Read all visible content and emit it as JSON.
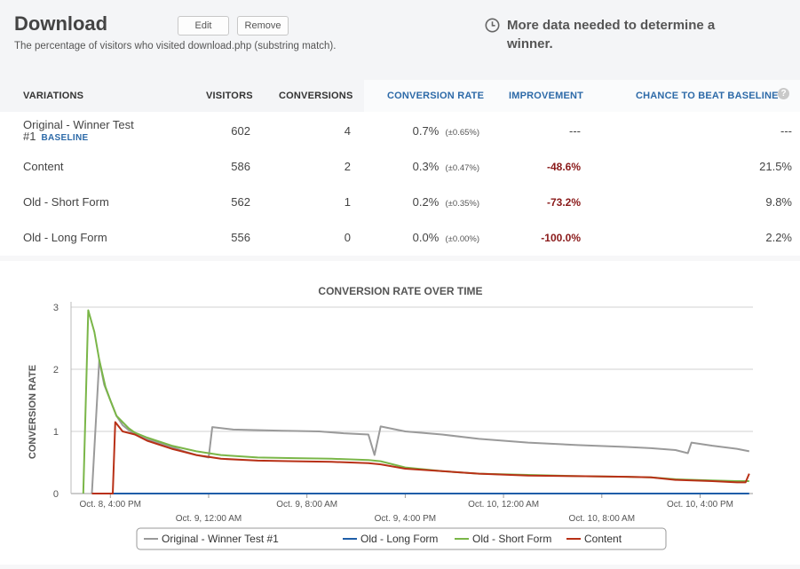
{
  "header": {
    "title": "Download",
    "edit_label": "Edit",
    "remove_label": "Remove",
    "description": "The percentage of visitors who visited download.php (substring match).",
    "notice": "More data needed to determine a winner."
  },
  "table": {
    "headers": {
      "variations": "VARIATIONS",
      "visitors": "VISITORS",
      "conversions": "CONVERSIONS",
      "conversion_rate": "CONVERSION RATE",
      "improvement": "IMPROVEMENT",
      "chance": "CHANCE TO BEAT BASELINE",
      "help": "?"
    },
    "rows": [
      {
        "name": "Original - Winner Test #1",
        "badge": "BASELINE",
        "visitors": "602",
        "conversions": "4",
        "rate": "0.7%",
        "ci": "(±0.65%)",
        "improvement": "---",
        "chance": "---"
      },
      {
        "name": "Content",
        "badge": "",
        "visitors": "586",
        "conversions": "2",
        "rate": "0.3%",
        "ci": "(±0.47%)",
        "improvement": "-48.6%",
        "chance": "21.5%"
      },
      {
        "name": "Old - Short Form",
        "badge": "",
        "visitors": "562",
        "conversions": "1",
        "rate": "0.2%",
        "ci": "(±0.35%)",
        "improvement": "-73.2%",
        "chance": "9.8%"
      },
      {
        "name": "Old - Long Form",
        "badge": "",
        "visitors": "556",
        "conversions": "0",
        "rate": "0.0%",
        "ci": "(±0.00%)",
        "improvement": "-100.0%",
        "chance": "2.2%"
      }
    ]
  },
  "chart_data": {
    "type": "line",
    "title": "CONVERSION RATE OVER TIME",
    "xlabel": "",
    "ylabel": "CONVERSION RATE",
    "ylim": [
      0,
      3
    ],
    "yticks": [
      "0",
      "1",
      "2",
      "3"
    ],
    "xticks_row1": [
      "Oct. 8, 4:00 PM",
      "Oct. 9, 8:00 AM",
      "Oct. 10, 12:00 AM",
      "Oct. 10, 4:00 PM"
    ],
    "xticks_row2": [
      "Oct. 9, 12:00 AM",
      "Oct. 9, 4:00 PM",
      "Oct. 10, 8:00 AM"
    ],
    "x_hours_range": [
      -3.2,
      52.3
    ],
    "tick_hours": [
      0,
      8,
      16,
      24,
      32,
      40,
      48
    ],
    "grid": true,
    "legend_position": "bottom",
    "series": [
      {
        "name": "Original - Winner Test #1",
        "color": "#9a9a9a",
        "points": [
          [
            -1.5,
            0
          ],
          [
            -0.9,
            2.15
          ],
          [
            -0.5,
            1.75
          ],
          [
            0,
            1.5
          ],
          [
            0.5,
            1.25
          ],
          [
            1,
            1.1
          ],
          [
            1.5,
            1.02
          ],
          [
            2,
            0.95
          ],
          [
            3,
            0.87
          ],
          [
            5,
            0.75
          ],
          [
            6,
            0.68
          ],
          [
            7,
            0.62
          ],
          [
            8,
            0.58
          ],
          [
            8.3,
            1.07
          ],
          [
            10,
            1.03
          ],
          [
            14,
            1.01
          ],
          [
            17,
            1.0
          ],
          [
            19,
            0.97
          ],
          [
            21,
            0.95
          ],
          [
            21.5,
            0.62
          ],
          [
            22,
            1.08
          ],
          [
            24,
            1.0
          ],
          [
            27,
            0.95
          ],
          [
            30,
            0.88
          ],
          [
            34,
            0.82
          ],
          [
            38,
            0.78
          ],
          [
            42,
            0.75
          ],
          [
            44,
            0.73
          ],
          [
            46,
            0.7
          ],
          [
            47,
            0.65
          ],
          [
            47.3,
            0.82
          ],
          [
            49,
            0.77
          ],
          [
            51,
            0.72
          ],
          [
            52,
            0.68
          ]
        ]
      },
      {
        "name": "Old - Long Form",
        "color": "#1f5ea8",
        "points": [
          [
            -1.5,
            0
          ],
          [
            52,
            0
          ]
        ]
      },
      {
        "name": "Old - Short Form",
        "color": "#7ab648",
        "points": [
          [
            -2.2,
            0
          ],
          [
            -1.8,
            2.95
          ],
          [
            -1.3,
            2.6
          ],
          [
            -0.9,
            2.15
          ],
          [
            -0.4,
            1.72
          ],
          [
            0,
            1.5
          ],
          [
            0.5,
            1.25
          ],
          [
            1,
            1.15
          ],
          [
            1.5,
            1.05
          ],
          [
            2,
            0.98
          ],
          [
            3,
            0.9
          ],
          [
            5,
            0.77
          ],
          [
            7,
            0.68
          ],
          [
            9,
            0.62
          ],
          [
            12,
            0.58
          ],
          [
            15,
            0.57
          ],
          [
            18,
            0.56
          ],
          [
            21,
            0.54
          ],
          [
            22,
            0.52
          ],
          [
            24,
            0.42
          ],
          [
            27,
            0.36
          ],
          [
            30,
            0.32
          ],
          [
            34,
            0.3
          ],
          [
            38,
            0.28
          ],
          [
            42,
            0.27
          ],
          [
            44,
            0.26
          ],
          [
            46,
            0.23
          ],
          [
            49,
            0.21
          ],
          [
            51,
            0.2
          ],
          [
            52,
            0.2
          ]
        ]
      },
      {
        "name": "Content",
        "color": "#b83016",
        "points": [
          [
            -1.5,
            0
          ],
          [
            0.2,
            0
          ],
          [
            0.4,
            1.15
          ],
          [
            1,
            1.0
          ],
          [
            2,
            0.95
          ],
          [
            3,
            0.85
          ],
          [
            5,
            0.72
          ],
          [
            7,
            0.62
          ],
          [
            9,
            0.56
          ],
          [
            12,
            0.53
          ],
          [
            15,
            0.52
          ],
          [
            18,
            0.51
          ],
          [
            21,
            0.49
          ],
          [
            22,
            0.47
          ],
          [
            24,
            0.4
          ],
          [
            27,
            0.36
          ],
          [
            30,
            0.32
          ],
          [
            34,
            0.29
          ],
          [
            38,
            0.28
          ],
          [
            42,
            0.27
          ],
          [
            44,
            0.26
          ],
          [
            46,
            0.22
          ],
          [
            49,
            0.2
          ],
          [
            51,
            0.18
          ],
          [
            51.7,
            0.18
          ],
          [
            52,
            0.32
          ]
        ]
      }
    ]
  }
}
